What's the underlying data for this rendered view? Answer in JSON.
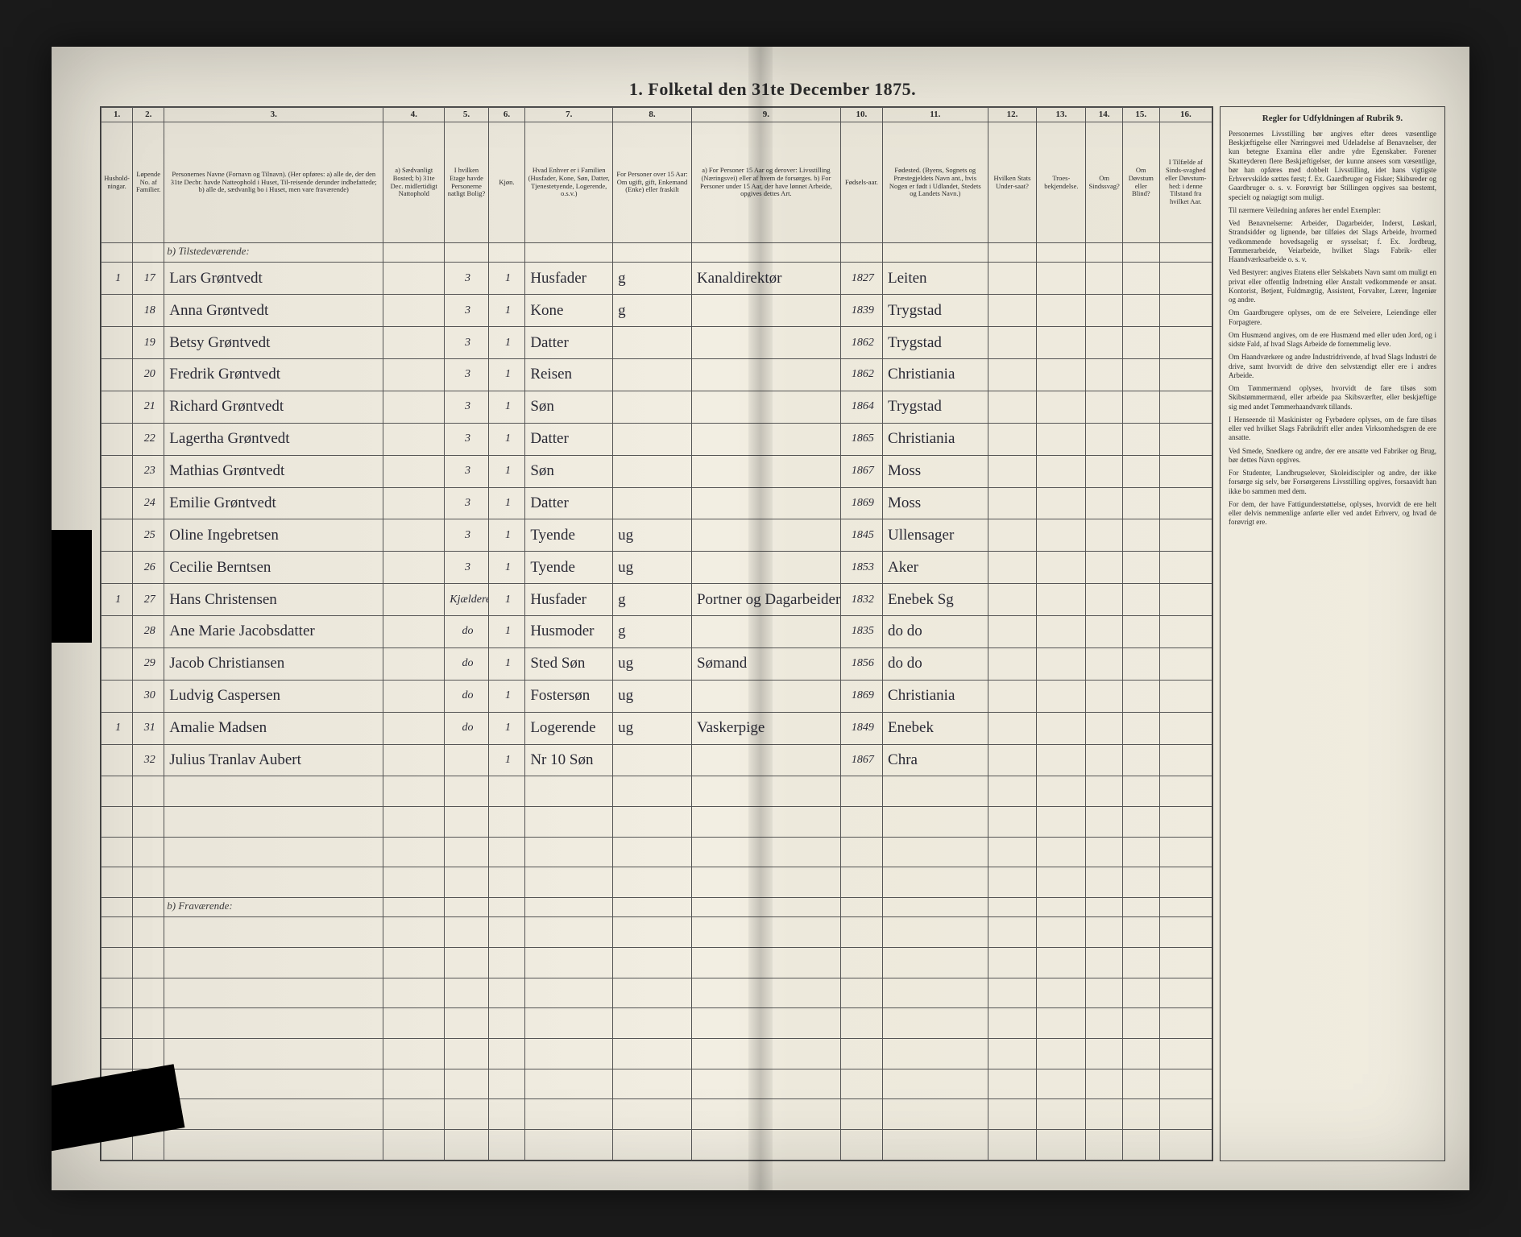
{
  "title": "1. Folketal den 31te December 1875.",
  "columns": {
    "numbers": [
      "1.",
      "2.",
      "3.",
      "4.",
      "5.",
      "6.",
      "7.",
      "8.",
      "9.",
      "10.",
      "11.",
      "12.",
      "13.",
      "14.",
      "15.",
      "16."
    ],
    "widths": [
      36,
      36,
      250,
      70,
      50,
      42,
      100,
      90,
      170,
      48,
      120,
      56,
      56,
      42,
      42,
      60
    ],
    "headers": [
      "Hushold-ningar.",
      "Løpende No. af Familier.",
      "Personernes Navne (Fornavn og Tilnavn).\n(Her opføres: a) alle de, der den 31te Decbr. havde Natteophold i Huset, Til-reisende derunder indbefattede; b) alle de, sædvanlig bo i Huset, men vare fraværende)",
      "a) Sædvanligt Bosted; b) 31te Dec. midlertidigt Nattophold",
      "I hvilken Etage havde Personerne natligt Bolig?",
      "Kjøn.",
      "Hvad Enhver er i Familien (Husfader, Kone, Søn, Datter, Tjenestetyende, Logerende, o.s.v.)",
      "For Personer over 15 Aar: Om ugift, gift, Enkemand (Enke) eller fraskilt",
      "a) For Personer 15 Aar og derover: Livsstilling (Næringsvei) eller af hvem de forsørges.\nb) For Personer under 15 Aar, der have lønnet Arbeide, opgives dettes Art.",
      "Fødsels-aar.",
      "Fødested.\n(Byens, Sognets og Præstegjeldets Navn ant., hvis Nogen er født i Udlandet, Stedets og Landets Navn.)",
      "Hvilken Stats Under-saat?",
      "Troes-bekjendelse.",
      "Om Sindssvag?",
      "Om Døvstum eller Blind?",
      "I Tilfælde af Sinds-svaghed eller Døvstum-hed: i denne Tilstand fra hvilket Aar."
    ]
  },
  "section_labels": {
    "present": "b) Tilstedeværende:",
    "absent": "b) Fraværende:"
  },
  "rows": [
    {
      "h": "1",
      "n": "17",
      "name": "Lars Grøntvedt",
      "floor": "3",
      "sex": "1",
      "role": "Husfader",
      "civ": "g",
      "occ": "Kanaldirektør",
      "year": "1827",
      "place": "Leiten"
    },
    {
      "h": "",
      "n": "18",
      "name": "Anna Grøntvedt",
      "floor": "3",
      "sex": "1",
      "role": "Kone",
      "civ": "g",
      "occ": "",
      "year": "1839",
      "place": "Trygstad"
    },
    {
      "h": "",
      "n": "19",
      "name": "Betsy Grøntvedt",
      "floor": "3",
      "sex": "1",
      "role": "Datter",
      "civ": "",
      "occ": "",
      "year": "1862",
      "place": "Trygstad"
    },
    {
      "h": "",
      "n": "20",
      "name": "Fredrik Grøntvedt",
      "floor": "3",
      "sex": "1",
      "role": "Reisen",
      "civ": "",
      "occ": "",
      "year": "1862",
      "place": "Christiania"
    },
    {
      "h": "",
      "n": "21",
      "name": "Richard Grøntvedt",
      "floor": "3",
      "sex": "1",
      "role": "Søn",
      "civ": "",
      "occ": "",
      "year": "1864",
      "place": "Trygstad"
    },
    {
      "h": "",
      "n": "22",
      "name": "Lagertha Grøntvedt",
      "floor": "3",
      "sex": "1",
      "role": "Datter",
      "civ": "",
      "occ": "",
      "year": "1865",
      "place": "Christiania"
    },
    {
      "h": "",
      "n": "23",
      "name": "Mathias Grøntvedt",
      "floor": "3",
      "sex": "1",
      "role": "Søn",
      "civ": "",
      "occ": "",
      "year": "1867",
      "place": "Moss"
    },
    {
      "h": "",
      "n": "24",
      "name": "Emilie Grøntvedt",
      "floor": "3",
      "sex": "1",
      "role": "Datter",
      "civ": "",
      "occ": "",
      "year": "1869",
      "place": "Moss"
    },
    {
      "h": "",
      "n": "25",
      "name": "Oline Ingebretsen",
      "floor": "3",
      "sex": "1",
      "role": "Tyende",
      "civ": "ug",
      "occ": "",
      "year": "1845",
      "place": "Ullensager"
    },
    {
      "h": "",
      "n": "26",
      "name": "Cecilie Berntsen",
      "floor": "3",
      "sex": "1",
      "role": "Tyende",
      "civ": "ug",
      "occ": "",
      "year": "1853",
      "place": "Aker"
    },
    {
      "h": "1",
      "n": "27",
      "name": "Hans Christensen",
      "floor": "Kjælderen",
      "sex": "1",
      "role": "Husfader",
      "civ": "g",
      "occ": "Portner og Dagarbeider",
      "year": "1832",
      "place": "Enebek Sg"
    },
    {
      "h": "",
      "n": "28",
      "name": "Ane Marie Jacobsdatter",
      "floor": "do",
      "sex": "1",
      "role": "Husmoder",
      "civ": "g",
      "occ": "",
      "year": "1835",
      "place": "do   do"
    },
    {
      "h": "",
      "n": "29",
      "name": "Jacob Christiansen",
      "floor": "do",
      "sex": "1",
      "role": "Sted Søn",
      "civ": "ug",
      "occ": "Sømand",
      "year": "1856",
      "place": "do   do"
    },
    {
      "h": "",
      "n": "30",
      "name": "Ludvig Caspersen",
      "floor": "do",
      "sex": "1",
      "role": "Fostersøn",
      "civ": "ug",
      "occ": "",
      "year": "1869",
      "place": "Christiania"
    },
    {
      "h": "1",
      "n": "31",
      "name": "Amalie Madsen",
      "floor": "do",
      "sex": "1",
      "role": "Logerende",
      "civ": "ug",
      "occ": "Vaskerpige",
      "year": "1849",
      "place": "Enebek"
    },
    {
      "h": "",
      "n": "32",
      "name": "Julius Tranlav Aubert",
      "floor": "",
      "sex": "1",
      "role": "Nr 10 Søn",
      "civ": "",
      "occ": "",
      "year": "1867",
      "place": "Chra"
    }
  ],
  "instructions": {
    "heading": "Regler for Udfyldningen af Rubrik 9.",
    "paragraphs": [
      "Personernes Livsstilling bør angives efter deres væsentlige Beskjæftigelse eller Næringsvei med Udeladelse af Benavnelser, der kun betegne Examina eller andre ydre Egenskaber. Forener Skatteyderen flere Beskjæftigelser, der kunne ansees som væsentlige, bør han opføres med dobbelt Livsstilling, idet hans vigtigste Erhvervskilde sættes først; f. Ex. Gaardbruger og Fisker; Skibsreder og Gaardbruger o. s. v. Forøvrigt bør Stillingen opgives saa bestemt, specielt og nøiagtigt som muligt.",
      "Til nærmere Veiledning anføres her endel Exempler:",
      "Ved Benavnelserne: Arbeider, Dagarbeider, Inderst, Løskarl, Strandsidder og lignende, bør tilføies det Slags Arbeide, hvormed vedkommende hovedsagelig er sysselsat; f. Ex. Jordbrug, Tømmerarbeide, Veiarbeide, hvilket Slags Fabrik- eller Haandværksarbeide o. s. v.",
      "Ved Bestyrer: angives Etatens eller Selskabets Navn samt om muligt en privat eller offentlig Indretning eller Anstalt vedkommende er ansat. Kontorist, Betjent, Fuldmægtig, Assistent, Forvalter, Lærer, Ingeniør og andre.",
      "Om Gaardbrugere oplyses, om de ere Selveiere, Leiendinge eller Forpagtere.",
      "Om Husmænd angives, om de ere Husmænd med eller uden Jord, og i sidste Fald, af hvad Slags Arbeide de fornemmelig leve.",
      "Om Haandværkere og andre Industridrivende, af hvad Slags Industri de drive, samt hvorvidt de drive den selvstændigt eller ere i andres Arbeide.",
      "Om Tømmermænd oplyses, hvorvidt de fare tilsøs som Skibstømmermænd, eller arbeide paa Skibsværfter, eller beskjæftige sig med andet Tømmerhaandværk tillands.",
      "I Henseende til Maskinister og Fyrbødere oplyses, om de fare tilsøs eller ved hvilket Slags Fabrikdrift eller anden Virksomhedsgren de ere ansatte.",
      "Ved Smede, Snedkere og andre, der ere ansatte ved Fabriker og Brug, bør dettes Navn opgives.",
      "For Studenter, Landbrugselever, Skoleidiscipler og andre, der ikke forsørge sig selv, bør Forsørgerens Livsstilling opgives, forsaavidt han ikke bo sammen med dem.",
      "For dem, der have Fattigunderstøttelse, oplyses, hvorvidt de ere helt eller delvis nemmenlige anførte eller ved andet Erhverv, og hvad de forøvrigt ere."
    ]
  },
  "styling": {
    "page_bg": "#f0ecdf",
    "border_color": "#3a3a3a",
    "text_color": "#2a2a2a",
    "script_color": "#2a2a35",
    "font_body": "Georgia, 'Times New Roman', serif",
    "font_script": "'Brush Script MT', 'Segoe Script', cursive",
    "title_fontsize": 22,
    "header_fontsize": 8.5,
    "data_fontsize": 19,
    "instructions_fontsize": 9
  }
}
